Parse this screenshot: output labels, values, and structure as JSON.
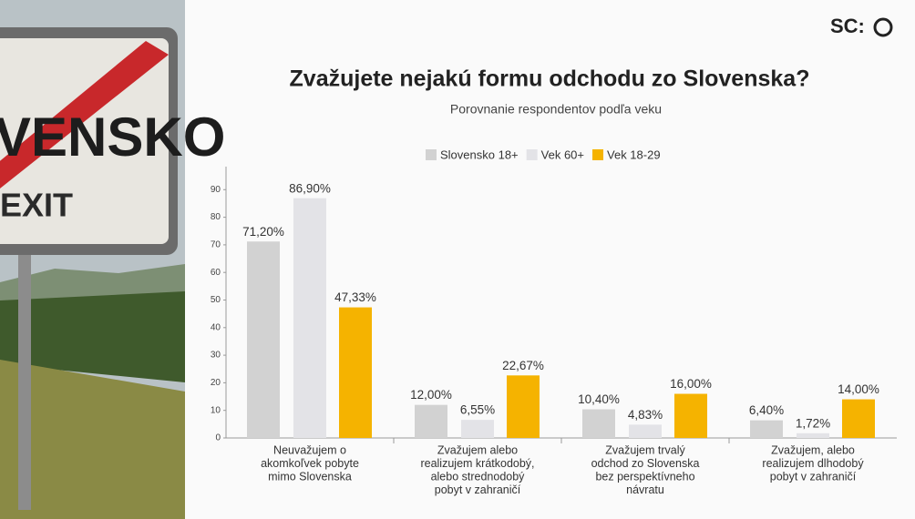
{
  "logo": "SC:",
  "photo": {
    "sign_text": "VENSKO",
    "sign_subtext": "EXIT"
  },
  "chart_data": {
    "type": "bar",
    "title": "Zvažujete nejakú formu odchodu zo Slovenska?",
    "subtitle": "Porovnanie respondentov podľa veku",
    "categories": [
      [
        "Neuvažujem o",
        "akomkoľvek pobyte",
        "mimo Slovenska"
      ],
      [
        "Zvažujem alebo",
        "realizujem krátkodobý,",
        "alebo strednodobý",
        "pobyt v zahraničí"
      ],
      [
        "Zvažujem trvalý",
        "odchod zo Slovenska",
        "bez perspektívneho",
        "návratu"
      ],
      [
        "Zvažujem, alebo",
        "realizujem dlhodobý",
        "pobyt v zahraničí"
      ]
    ],
    "series": [
      {
        "name": "Slovensko 18+",
        "color": "#d2d2d2",
        "values": [
          71.2,
          12.0,
          10.4,
          6.4
        ],
        "value_labels": [
          "71,20%",
          "12,00%",
          "10,40%",
          "6,40%"
        ]
      },
      {
        "name": "Vek 60+",
        "color": "#e3e3e7",
        "values": [
          86.9,
          6.55,
          4.83,
          1.72
        ],
        "value_labels": [
          "86,90%",
          "6,55%",
          "4,83%",
          "1,72%"
        ]
      },
      {
        "name": "Vek 18-29",
        "color": "#f5b300",
        "values": [
          47.33,
          22.67,
          16.0,
          14.0
        ],
        "value_labels": [
          "47,33%",
          "22,67%",
          "16,00%",
          "14,00%"
        ]
      }
    ],
    "ylim": [
      0,
      100
    ],
    "yticks": [
      0,
      10,
      20,
      30,
      40,
      50,
      60,
      70,
      80,
      90
    ],
    "legend": "top"
  }
}
